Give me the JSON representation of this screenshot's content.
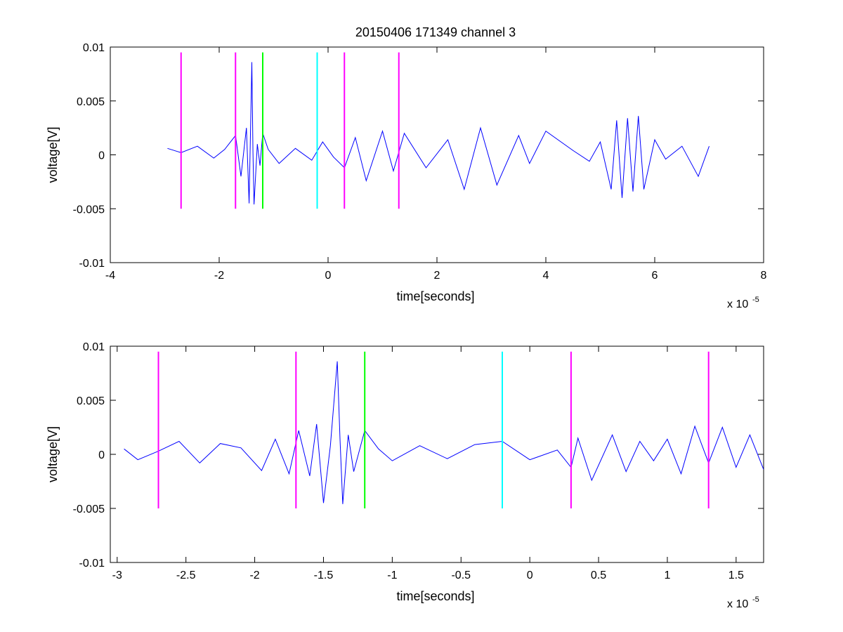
{
  "figure": {
    "title": "20150406 171349 channel 3",
    "colors": {
      "signal": "#0000ff",
      "magenta": "#ff00ff",
      "green": "#00ff00",
      "cyan": "#00ffff",
      "axes": "#000000",
      "background": "#ffffff"
    }
  },
  "chart_data": [
    {
      "type": "line",
      "title": "20150406 171349 channel 3",
      "xlabel": "time[seconds]",
      "ylabel": "voltage[V]",
      "x_exponent_text": "x 10",
      "x_exponent_power": "-5",
      "xlim": [
        -4,
        8
      ],
      "ylim": [
        -0.01,
        0.01
      ],
      "xticks": [
        -4,
        -2,
        0,
        2,
        4,
        6,
        8
      ],
      "xtick_labels": [
        "-4",
        "-2",
        "0",
        "2",
        "4",
        "6",
        "8"
      ],
      "yticks": [
        -0.01,
        -0.005,
        0,
        0.005,
        0.01
      ],
      "ytick_labels": [
        "-0.01",
        "-0.005",
        "0",
        "0.005",
        "0.01"
      ],
      "grid": false,
      "marker_lines": [
        {
          "x": -2.7,
          "ymin": -0.005,
          "ymax": 0.0095,
          "color": "magenta"
        },
        {
          "x": -1.7,
          "ymin": -0.005,
          "ymax": 0.0095,
          "color": "magenta"
        },
        {
          "x": -1.2,
          "ymin": -0.005,
          "ymax": 0.0095,
          "color": "green"
        },
        {
          "x": -0.2,
          "ymin": -0.005,
          "ymax": 0.0095,
          "color": "cyan"
        },
        {
          "x": 0.3,
          "ymin": -0.005,
          "ymax": 0.0095,
          "color": "magenta"
        },
        {
          "x": 1.3,
          "ymin": -0.005,
          "ymax": 0.0095,
          "color": "magenta"
        }
      ],
      "series": [
        {
          "color": "signal",
          "x": [
            -2.95,
            -2.7,
            -2.4,
            -2.1,
            -1.9,
            -1.7,
            -1.6,
            -1.5,
            -1.45,
            -1.4,
            -1.38,
            -1.36,
            -1.3,
            -1.25,
            -1.2,
            -1.1,
            -0.9,
            -0.6,
            -0.3,
            -0.1,
            0.1,
            0.3,
            0.5,
            0.7,
            1.0,
            1.2,
            1.4,
            1.8,
            2.2,
            2.5,
            2.8,
            3.1,
            3.5,
            3.7,
            4.0,
            4.5,
            4.8,
            5.0,
            5.2,
            5.3,
            5.4,
            5.5,
            5.6,
            5.7,
            5.8,
            6.0,
            6.2,
            6.5,
            6.8,
            7.0
          ],
          "y": [
            0.0006,
            0.0002,
            0.0008,
            -0.0003,
            0.0005,
            0.0018,
            -0.002,
            0.0025,
            -0.0045,
            0.0086,
            0.0002,
            -0.0046,
            0.001,
            -0.001,
            0.002,
            0.0005,
            -0.0008,
            0.0006,
            -0.0005,
            0.0012,
            -0.0002,
            -0.0012,
            0.0016,
            -0.0024,
            0.0022,
            -0.0015,
            0.002,
            -0.0012,
            0.0014,
            -0.0032,
            0.0025,
            -0.0028,
            0.0018,
            -0.0008,
            0.0022,
            0.0004,
            -0.0006,
            0.0012,
            -0.0032,
            0.0032,
            -0.004,
            0.0034,
            -0.0034,
            0.0036,
            -0.0032,
            0.0014,
            -0.0004,
            0.0008,
            -0.002,
            0.0008
          ]
        }
      ]
    },
    {
      "type": "line",
      "xlabel": "time[seconds]",
      "ylabel": "voltage[V]",
      "x_exponent_text": "x 10",
      "x_exponent_power": "-5",
      "xlim": [
        -3.05,
        1.7
      ],
      "ylim": [
        -0.01,
        0.01
      ],
      "xticks": [
        -3,
        -2.5,
        -2,
        -1.5,
        -1,
        -0.5,
        0,
        0.5,
        1,
        1.5
      ],
      "xtick_labels": [
        "-3",
        "-2.5",
        "-2",
        "-1.5",
        "-1",
        "-0.5",
        "0",
        "0.5",
        "1",
        "1.5"
      ],
      "yticks": [
        -0.01,
        -0.005,
        0,
        0.005,
        0.01
      ],
      "ytick_labels": [
        "-0.01",
        "-0.005",
        "0",
        "0.005",
        "0.01"
      ],
      "grid": false,
      "marker_lines": [
        {
          "x": -2.7,
          "ymin": -0.005,
          "ymax": 0.0095,
          "color": "magenta"
        },
        {
          "x": -1.7,
          "ymin": -0.005,
          "ymax": 0.0095,
          "color": "magenta"
        },
        {
          "x": -1.2,
          "ymin": -0.005,
          "ymax": 0.0095,
          "color": "green"
        },
        {
          "x": -0.2,
          "ymin": -0.005,
          "ymax": 0.0095,
          "color": "cyan"
        },
        {
          "x": 0.3,
          "ymin": -0.005,
          "ymax": 0.0095,
          "color": "magenta"
        },
        {
          "x": 1.3,
          "ymin": -0.005,
          "ymax": 0.0095,
          "color": "magenta"
        }
      ],
      "series": [
        {
          "color": "signal",
          "x": [
            -2.95,
            -2.85,
            -2.7,
            -2.55,
            -2.4,
            -2.25,
            -2.1,
            -1.95,
            -1.85,
            -1.75,
            -1.68,
            -1.6,
            -1.55,
            -1.5,
            -1.45,
            -1.4,
            -1.38,
            -1.36,
            -1.32,
            -1.28,
            -1.2,
            -1.1,
            -1.0,
            -0.8,
            -0.6,
            -0.4,
            -0.2,
            0.0,
            0.2,
            0.3,
            0.35,
            0.45,
            0.6,
            0.7,
            0.8,
            0.9,
            1.0,
            1.1,
            1.2,
            1.3,
            1.4,
            1.5,
            1.6,
            1.7
          ],
          "y": [
            0.0005,
            -0.0005,
            0.0003,
            0.0012,
            -0.0008,
            0.001,
            0.0006,
            -0.0015,
            0.0014,
            -0.0018,
            0.0022,
            -0.002,
            0.0028,
            -0.0045,
            0.0008,
            0.0086,
            0.0014,
            -0.0046,
            0.0018,
            -0.0016,
            0.0022,
            0.0005,
            -0.0006,
            0.0008,
            -0.0004,
            0.0009,
            0.0012,
            -0.0005,
            0.0004,
            -0.0012,
            0.0015,
            -0.0024,
            0.0018,
            -0.0016,
            0.0012,
            -0.0006,
            0.0014,
            -0.0018,
            0.0026,
            -0.0008,
            0.0025,
            -0.0012,
            0.0018,
            -0.0014
          ]
        }
      ]
    }
  ]
}
